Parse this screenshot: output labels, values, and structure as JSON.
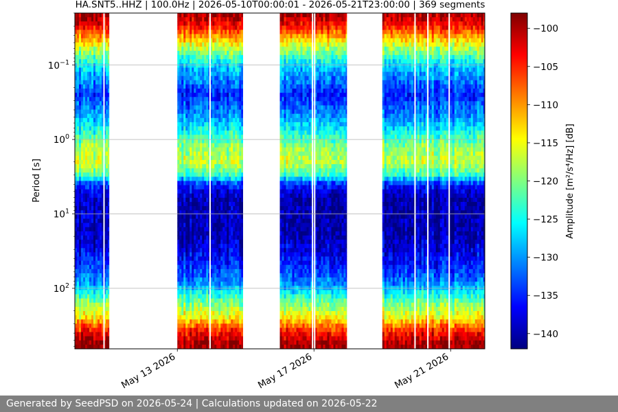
{
  "footer": {
    "text": "Generated by SeedPSD on 2026-05-24 | Calculations updated on 2026-05-22"
  },
  "chart_data": {
    "type": "heatmap",
    "title": "HA.SNT5..HHZ | 100.0Hz | 2026-05-10T00:00:01 - 2026-05-21T23:00:00 | 369 segments",
    "xlabel": "",
    "ylabel": "Period [s]",
    "colorbar_label": "Amplitude [m²/s⁴/Hz] [dB]",
    "colormap": "jet",
    "x_range": [
      "2026-05-10T00:00",
      "2026-05-22T00:00"
    ],
    "x_ticks": [
      {
        "date": "2026-05-13",
        "label": "May 13 2026"
      },
      {
        "date": "2026-05-17",
        "label": "May 17 2026"
      },
      {
        "date": "2026-05-21",
        "label": "May 21 2026"
      }
    ],
    "y_scale": "log",
    "y_range": [
      0.02,
      650
    ],
    "y_ticks": [
      {
        "value": 0.1,
        "base": "10",
        "exp": "−1"
      },
      {
        "value": 1,
        "base": "10",
        "exp": "0"
      },
      {
        "value": 10,
        "base": "10",
        "exp": "1"
      },
      {
        "value": 100,
        "base": "10",
        "exp": "2"
      }
    ],
    "grid": "horizontal",
    "color_range": [
      -142,
      -98
    ],
    "colorbar_ticks": [
      -100,
      -105,
      -110,
      -115,
      -120,
      -125,
      -130,
      -135,
      -140
    ],
    "colorbar_tick_labels": [
      "−100",
      "−105",
      "−110",
      "−115",
      "−120",
      "−125",
      "−130",
      "−135",
      "−140"
    ],
    "data_segments": [
      {
        "start": "2026-05-10T00:00",
        "end": "2026-05-11T00:00"
      },
      {
        "start": "2026-05-13T00:00",
        "end": "2026-05-14T22:00"
      },
      {
        "start": "2026-05-16T00:00",
        "end": "2026-05-17T23:00"
      },
      {
        "start": "2026-05-19T00:00",
        "end": "2026-05-22T00:00"
      }
    ],
    "gap_lines": [
      "2026-05-10T20:30",
      "2026-05-13T23:00",
      "2026-05-16T23:00",
      "2026-05-17T00:30",
      "2026-05-19T23:00",
      "2026-05-20T08:00",
      "2026-05-20T23:00"
    ],
    "typical_profile": [
      {
        "period": 0.02,
        "db": -99
      },
      {
        "period": 0.03,
        "db": -104
      },
      {
        "period": 0.04,
        "db": -110
      },
      {
        "period": 0.06,
        "db": -118
      },
      {
        "period": 0.1,
        "db": -127
      },
      {
        "period": 0.25,
        "db": -135
      },
      {
        "period": 0.5,
        "db": -130
      },
      {
        "period": 1.3,
        "db": -119
      },
      {
        "period": 2,
        "db": -117
      },
      {
        "period": 3,
        "db": -123
      },
      {
        "period": 4,
        "db": -135
      },
      {
        "period": 6,
        "db": -140
      },
      {
        "period": 20,
        "db": -140
      },
      {
        "period": 50,
        "db": -135
      },
      {
        "period": 90,
        "db": -130
      },
      {
        "period": 150,
        "db": -121
      },
      {
        "period": 250,
        "db": -114
      },
      {
        "period": 350,
        "db": -106
      },
      {
        "period": 500,
        "db": -100
      },
      {
        "period": 650,
        "db": -99
      }
    ]
  }
}
